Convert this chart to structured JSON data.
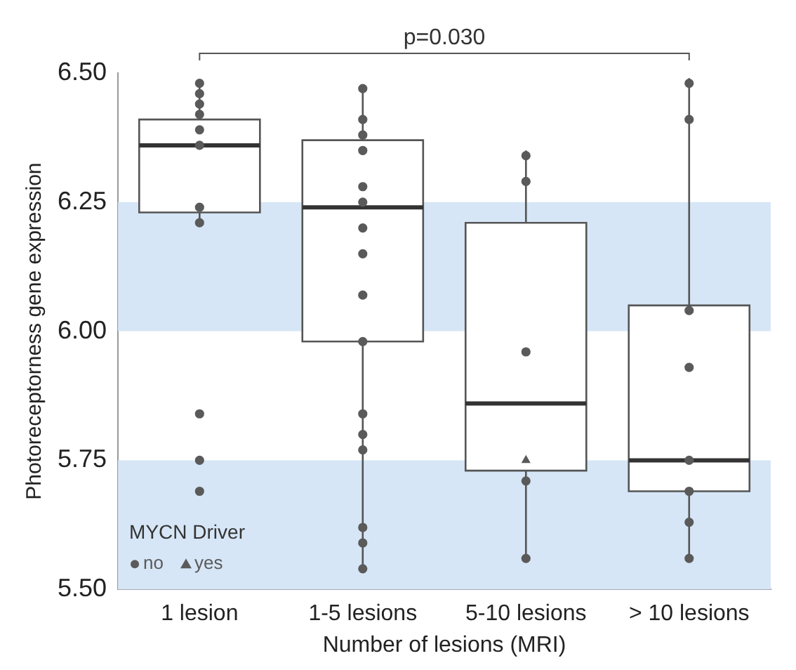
{
  "chart_data": {
    "type": "box",
    "categories": [
      "1 lesion",
      "1-5 lesions",
      "5-10 lesions",
      "> 10 lesions"
    ],
    "xlabel": "Number of lesions (MRI)",
    "ylabel": "Photoreceptorness gene expression",
    "legend_title": "MYCN Driver",
    "legend": "bottom left",
    "ylim": [
      5.5,
      6.5
    ],
    "yticks": [
      {
        "value": 5.5,
        "label": "5.50"
      },
      {
        "value": 5.75,
        "label": "5.75"
      },
      {
        "value": 6.0,
        "label": "6.00"
      },
      {
        "value": 6.25,
        "label": "6.25"
      },
      {
        "value": 6.5,
        "label": "6.50"
      }
    ],
    "boxes": [
      {
        "low": 6.21,
        "q1": 6.23,
        "median": 6.36,
        "q3": 6.41,
        "high": 6.48
      },
      {
        "low": 5.54,
        "q1": 5.98,
        "median": 6.24,
        "q3": 6.37,
        "high": 6.47
      },
      {
        "low": 5.56,
        "q1": 5.73,
        "median": 5.86,
        "q3": 6.21,
        "high": 6.35
      },
      {
        "low": 5.56,
        "q1": 5.69,
        "median": 5.75,
        "q3": 6.05,
        "high": 6.49
      }
    ],
    "bands": [
      {
        "axis": "y",
        "from": 6.0,
        "to": 6.25,
        "color": "#d6e6f6"
      },
      {
        "axis": "y",
        "from": 5.5,
        "to": 5.75,
        "color": "#d6e6f6"
      }
    ],
    "annotations": [
      "p=0.030"
    ],
    "series": [
      {
        "name": "no",
        "type": "scatter",
        "marker": "circle",
        "color": "#5a5a5a",
        "x": [
          "1 lesion",
          "1 lesion",
          "1 lesion",
          "1 lesion",
          "1 lesion",
          "1 lesion",
          "1 lesion",
          "1 lesion",
          "1 lesion",
          "1 lesion",
          "1 lesion",
          "1-5 lesions",
          "1-5 lesions",
          "1-5 lesions",
          "1-5 lesions",
          "1-5 lesions",
          "1-5 lesions",
          "1-5 lesions",
          "1-5 lesions",
          "1-5 lesions",
          "1-5 lesions",
          "1-5 lesions",
          "1-5 lesions",
          "1-5 lesions",
          "1-5 lesions",
          "1-5 lesions",
          "1-5 lesions",
          "5-10 lesions",
          "5-10 lesions",
          "5-10 lesions",
          "5-10 lesions",
          "5-10 lesions",
          "> 10 lesions",
          "> 10 lesions",
          "> 10 lesions",
          "> 10 lesions",
          "> 10 lesions",
          "> 10 lesions",
          "> 10 lesions",
          "> 10 lesions"
        ],
        "values": [
          6.48,
          6.46,
          6.44,
          6.42,
          6.39,
          6.36,
          6.24,
          6.21,
          5.84,
          5.75,
          5.69,
          6.47,
          6.41,
          6.38,
          6.35,
          6.28,
          6.25,
          6.2,
          6.15,
          6.07,
          5.98,
          5.84,
          5.8,
          5.77,
          5.62,
          5.59,
          5.54,
          6.34,
          6.29,
          5.96,
          5.71,
          5.56,
          6.48,
          6.41,
          6.04,
          5.93,
          5.75,
          5.69,
          5.63,
          5.56
        ]
      },
      {
        "name": "yes",
        "type": "scatter",
        "marker": "triangle",
        "color": "#5a5a5a",
        "x": [
          "5-10 lesions"
        ],
        "values": [
          5.75
        ]
      }
    ]
  }
}
